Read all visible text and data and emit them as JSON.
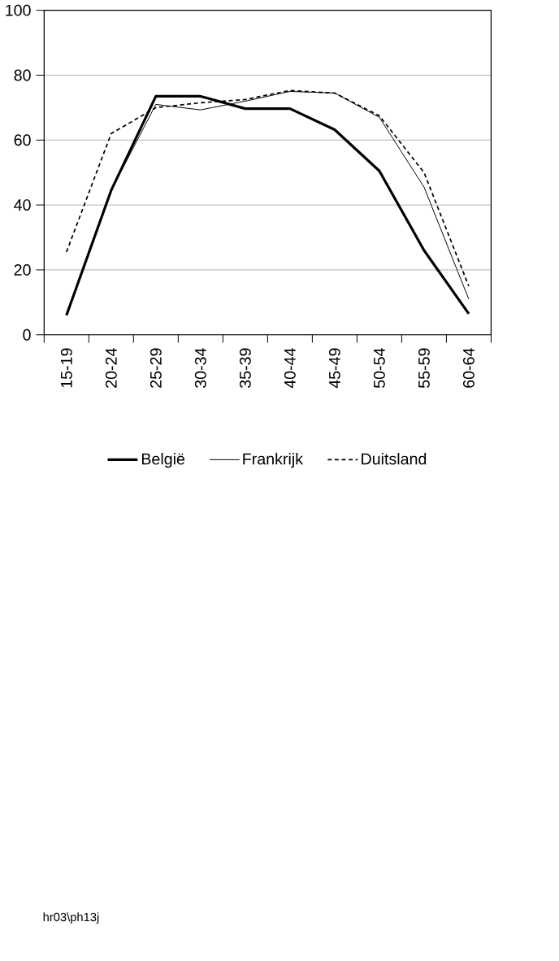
{
  "chart_data": {
    "type": "line",
    "categories": [
      "15-19",
      "20-24",
      "25-29",
      "30-34",
      "35-39",
      "40-44",
      "45-49",
      "50-54",
      "55-59",
      "60-64"
    ],
    "series": [
      {
        "name": "België",
        "color": "#000000",
        "line_style": "solid",
        "values": [
          6,
          44.5,
          73.5,
          73.5,
          69.7,
          69.7,
          63.2,
          50.5,
          26,
          6.5
        ]
      },
      {
        "name": "Frankrijk",
        "color": "#000000",
        "line_style": "solid",
        "values": [
          6,
          44.5,
          71,
          69.3,
          72,
          75,
          74.5,
          67,
          45.5,
          11
        ]
      },
      {
        "name": "Duitsland",
        "color": "#000000",
        "line_style": "dashed",
        "values": [
          25.5,
          62,
          70,
          71.5,
          72.5,
          75.3,
          74.5,
          67.5,
          50,
          15
        ]
      }
    ],
    "ylim": [
      0,
      100
    ],
    "yticks": [
      0,
      20,
      40,
      60,
      80,
      100
    ],
    "grid": "y",
    "legend": "bottom",
    "marker": "none",
    "annotations": [
      "hr03\\ph13j"
    ]
  }
}
